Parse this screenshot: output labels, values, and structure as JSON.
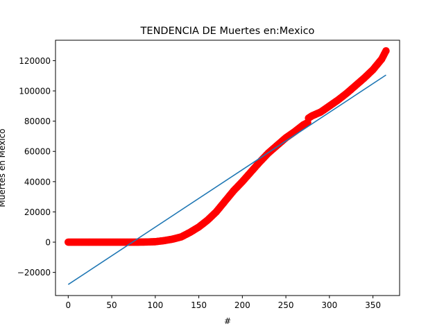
{
  "chart_data": {
    "type": "scatter",
    "title": "TENDENCIA DE Muertes  en:Mexico",
    "xlabel": "#",
    "ylabel": "Muertes en Mexico",
    "xlim": [
      -14.6,
      380.6
    ],
    "ylim": [
      -35300,
      133500
    ],
    "xticks": [
      0,
      50,
      100,
      150,
      200,
      250,
      300,
      350
    ],
    "yticks": [
      -20000,
      0,
      20000,
      40000,
      60000,
      80000,
      100000,
      120000
    ],
    "xtick_labels": [
      "0",
      "50",
      "100",
      "150",
      "200",
      "250",
      "300",
      "350"
    ],
    "ytick_labels": [
      "−20000",
      "0",
      "20000",
      "40000",
      "60000",
      "80000",
      "100000",
      "120000"
    ],
    "grid": false,
    "series": [
      {
        "kind": "scatter",
        "color": "#ff0000",
        "points": [
          [
            0,
            0
          ],
          [
            20,
            0
          ],
          [
            40,
            0
          ],
          [
            60,
            0
          ],
          [
            80,
            0
          ],
          [
            90,
            100
          ],
          [
            100,
            300
          ],
          [
            110,
            1000
          ],
          [
            120,
            2000
          ],
          [
            130,
            3500
          ],
          [
            140,
            6500
          ],
          [
            150,
            10000
          ],
          [
            160,
            14500
          ],
          [
            170,
            20000
          ],
          [
            180,
            27000
          ],
          [
            190,
            34000
          ],
          [
            200,
            40000
          ],
          [
            210,
            46500
          ],
          [
            220,
            53000
          ],
          [
            230,
            59000
          ],
          [
            240,
            64000
          ],
          [
            250,
            69000
          ],
          [
            260,
            73000
          ],
          [
            270,
            77500
          ],
          [
            275,
            79000
          ],
          [
            276,
            82000
          ],
          [
            280,
            83500
          ],
          [
            290,
            86000
          ],
          [
            300,
            90000
          ],
          [
            310,
            94000
          ],
          [
            320,
            98500
          ],
          [
            330,
            103500
          ],
          [
            340,
            108500
          ],
          [
            350,
            114000
          ],
          [
            360,
            121000
          ],
          [
            365,
            126500
          ]
        ]
      },
      {
        "kind": "line",
        "color": "#1f77b4",
        "points": [
          [
            0,
            -28000
          ],
          [
            365,
            110500
          ]
        ]
      }
    ]
  }
}
